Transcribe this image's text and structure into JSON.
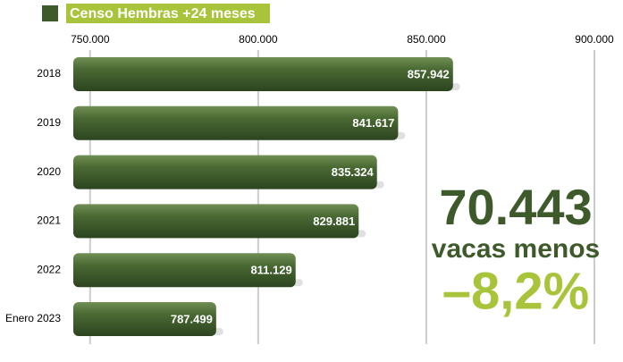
{
  "chart_data": {
    "type": "bar",
    "orientation": "horizontal",
    "title": "Censo Hembras +24 meses",
    "categories": [
      "2018",
      "2019",
      "2020",
      "2021",
      "2022",
      "Enero 2023"
    ],
    "values": [
      857942,
      841617,
      835324,
      829881,
      811129,
      787499
    ],
    "value_labels": [
      "857.942",
      "841.617",
      "835.324",
      "829.881",
      "811.129",
      "787.499"
    ],
    "color": "#3e5a2b",
    "xlim": [
      745000,
      900000
    ],
    "xticks": [
      {
        "value": 750000,
        "label": "750.000"
      },
      {
        "value": 800000,
        "label": "800.000"
      },
      {
        "value": 850000,
        "label": "850.000"
      },
      {
        "value": 900000,
        "label": "900.000"
      }
    ],
    "grid": true,
    "annotations": [
      "70.443",
      "vacas menos",
      "–8,2%"
    ]
  }
}
